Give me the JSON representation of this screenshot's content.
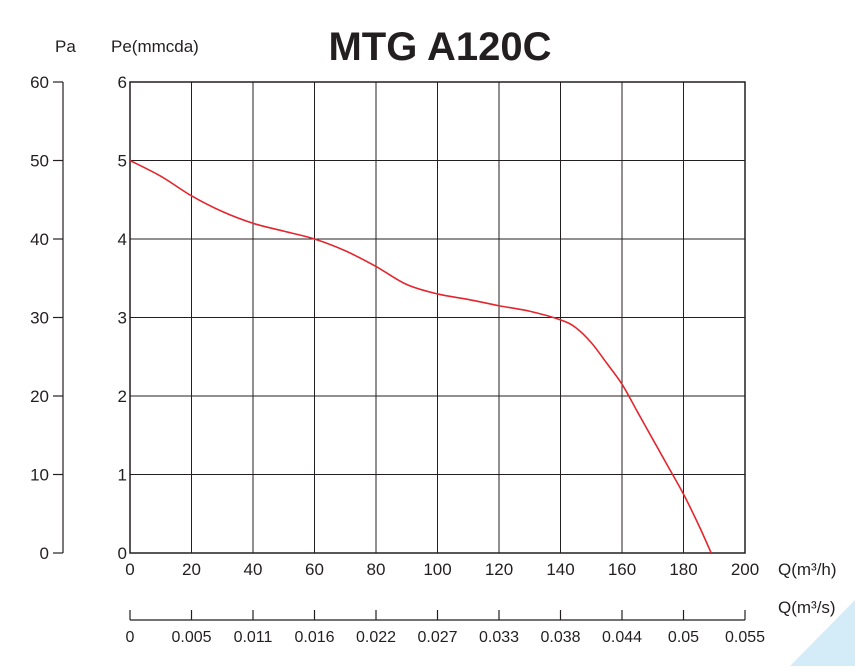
{
  "chart_data": {
    "type": "line",
    "title": "MTG A120C",
    "left_axis_label": "Pa",
    "right_axis_label": "Pe(mmcda)",
    "x_axis_label": "Q(m³/h)",
    "x2_axis_label": "Q(m³/s)",
    "x_range": [
      0,
      200
    ],
    "y_range_mmcda": [
      0,
      6
    ],
    "y_range_pa": [
      0,
      60
    ],
    "x_ticks": [
      "0",
      "20",
      "40",
      "60",
      "80",
      "100",
      "120",
      "140",
      "160",
      "180",
      "200"
    ],
    "x2_ticks": [
      "0",
      "0.005",
      "0.011",
      "0.016",
      "0.022",
      "0.027",
      "0.033",
      "0.038",
      "0.044",
      "0.05",
      "0.055"
    ],
    "y_ticks_pa": [
      "0",
      "10",
      "20",
      "30",
      "40",
      "50",
      "60"
    ],
    "y_ticks_mmcda": [
      "0",
      "1",
      "2",
      "3",
      "4",
      "5",
      "6"
    ],
    "grid": true,
    "line_color": "#e3262e",
    "series": [
      {
        "x": [
          0,
          10,
          20,
          30,
          40,
          50,
          60,
          70,
          80,
          90,
          100,
          110,
          120,
          130,
          140,
          145,
          150,
          155,
          160,
          165,
          170,
          175,
          180,
          185,
          189
        ],
        "y": [
          5.0,
          4.8,
          4.55,
          4.35,
          4.2,
          4.1,
          4.0,
          3.85,
          3.65,
          3.42,
          3.3,
          3.23,
          3.15,
          3.08,
          2.97,
          2.87,
          2.68,
          2.42,
          2.15,
          1.8,
          1.45,
          1.1,
          0.75,
          0.35,
          0.0
        ]
      }
    ]
  }
}
